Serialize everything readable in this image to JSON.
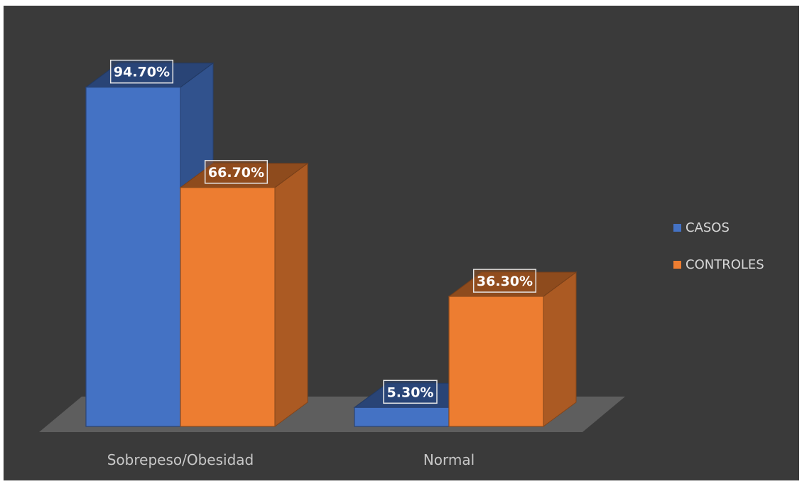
{
  "chart_data": {
    "type": "bar",
    "style": "3d-clustered-column",
    "categories": [
      "Sobrepeso/Obesidad",
      "Normal"
    ],
    "series": [
      {
        "name": "CASOS",
        "values": [
          94.7,
          5.3
        ],
        "labels": [
          "94.70%",
          "5.30%"
        ],
        "color": "#4472c4"
      },
      {
        "name": "CONTROLES",
        "values": [
          66.7,
          36.3
        ],
        "labels": [
          "66.70%",
          "36.30%"
        ],
        "color": "#ed7d31"
      }
    ],
    "ylim": [
      0,
      100
    ],
    "y_unit": "%",
    "grid": false,
    "legend": "right",
    "background": "#3a3a3a"
  }
}
